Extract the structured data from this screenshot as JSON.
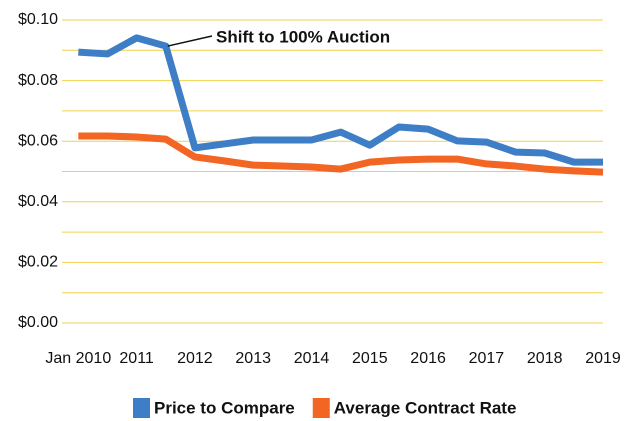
{
  "chart_data": {
    "type": "line",
    "x": [
      2010,
      2010.5,
      2011,
      2011.5,
      2012,
      2012.5,
      2013,
      2013.5,
      2014,
      2014.5,
      2015,
      2015.5,
      2016,
      2016.5,
      2017,
      2017.5,
      2018,
      2018.5,
      2019
    ],
    "series": [
      {
        "name": "Price to Compare",
        "color": "#3d7ec6",
        "values": [
          0.0894,
          0.0888,
          0.0941,
          0.0914,
          0.0578,
          0.0591,
          0.0604,
          0.0604,
          0.0604,
          0.063,
          0.0587,
          0.0647,
          0.064,
          0.0601,
          0.0597,
          0.0564,
          0.0561,
          0.0531,
          0.0531
        ]
      },
      {
        "name": "Average Contract Rate",
        "color": "#f26522",
        "values": [
          0.0617,
          0.0617,
          0.0614,
          0.0607,
          0.0548,
          0.0535,
          0.0521,
          0.0518,
          0.0515,
          0.0508,
          0.0531,
          0.0538,
          0.0541,
          0.0541,
          0.0525,
          0.0518,
          0.0508,
          0.0502,
          0.0498
        ]
      }
    ],
    "annotation": "Shift to 100% Auction",
    "xlim": [
      2009.72,
      2019
    ],
    "xticks": [
      {
        "value": 2010,
        "label": "Jan 2010"
      },
      2011,
      2012,
      2013,
      2014,
      2015,
      2016,
      2017,
      2018,
      2019
    ],
    "ylim": [
      0,
      0.1
    ],
    "yticks": [
      {
        "value": 0,
        "label": "$0.00"
      },
      {
        "value": 0.02,
        "label": "$0.02"
      },
      {
        "value": 0.04,
        "label": "$0.04"
      },
      {
        "value": 0.06,
        "label": "$0.06"
      },
      {
        "value": 0.08,
        "label": "$0.08"
      },
      {
        "value": 0.1,
        "label": "$0.10"
      }
    ],
    "minor_yticks": [
      0.01,
      0.03,
      0.05,
      0.07,
      0.09
    ],
    "grid": true,
    "grid_color": "#f3d04a",
    "legend": "bottom"
  }
}
